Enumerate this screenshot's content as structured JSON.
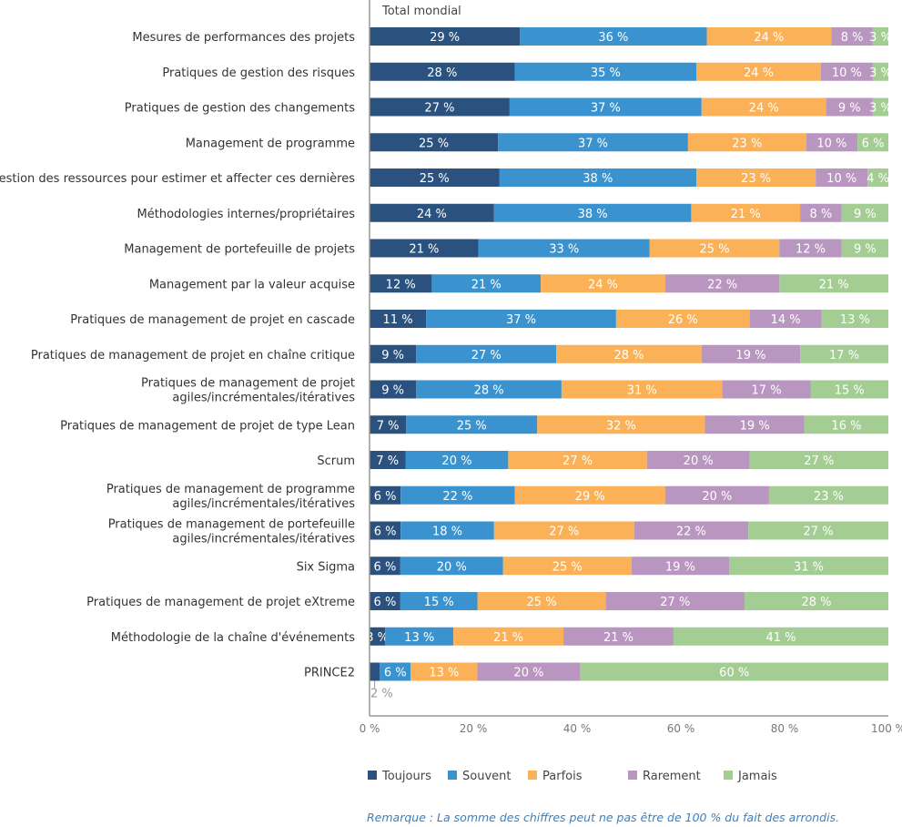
{
  "chart_data": {
    "type": "bar",
    "orientation": "horizontal",
    "stacked": true,
    "title": "Total mondial",
    "categories": [
      "Mesures de performances des projets",
      "Pratiques de gestion des risques",
      "Pratiques de gestion des changements",
      "Management de programme",
      "Gestion des ressources pour estimer et affecter ces dernières",
      "Méthodologies internes/propriétaires",
      "Management de portefeuille de projets",
      "Management par la valeur acquise",
      "Pratiques de management de projet en cascade",
      "Pratiques de management de projet en chaîne critique",
      "Pratiques de management de projet\nagiles/incrémentales/itératives",
      "Pratiques de management de projet de type Lean",
      "Scrum",
      "Pratiques de management de programme\nagiles/incrémentales/itératives",
      "Pratiques de management de portefeuille\nagiles/incrémentales/itératives",
      "Six Sigma",
      "Pratiques de management de projet eXtreme",
      "Méthodologie de la chaîne d'événements",
      "PRINCE2"
    ],
    "series": [
      {
        "name": "Toujours",
        "color": "#2b527f",
        "values": [
          29,
          28,
          27,
          25,
          25,
          24,
          21,
          12,
          11,
          9,
          9,
          7,
          7,
          6,
          6,
          6,
          6,
          3,
          2
        ]
      },
      {
        "name": "Souvent",
        "color": "#3a93cf",
        "values": [
          36,
          35,
          37,
          37,
          38,
          38,
          33,
          21,
          37,
          27,
          28,
          25,
          20,
          22,
          18,
          20,
          15,
          13,
          6
        ]
      },
      {
        "name": "Parfois",
        "color": "#fbb157",
        "values": [
          24,
          24,
          24,
          23,
          23,
          21,
          25,
          24,
          26,
          28,
          31,
          32,
          27,
          29,
          27,
          25,
          25,
          21,
          13
        ]
      },
      {
        "name": "Rarement",
        "color": "#b996c0",
        "values": [
          8,
          10,
          9,
          10,
          10,
          8,
          12,
          22,
          14,
          19,
          17,
          19,
          20,
          20,
          22,
          19,
          27,
          21,
          20
        ]
      },
      {
        "name": "Jamais",
        "color": "#a4cd93",
        "values": [
          3,
          3,
          3,
          6,
          4,
          9,
          9,
          21,
          13,
          17,
          15,
          16,
          27,
          23,
          27,
          31,
          28,
          41,
          60
        ]
      }
    ],
    "value_suffix": " %",
    "xlim": [
      0,
      100
    ],
    "x_ticks": [
      "0 %",
      "20 %",
      "40 %",
      "60 %",
      "80 %",
      "100 %"
    ],
    "grid": false,
    "legend_position": "bottom",
    "note": "Remarque : La somme des chiffres peut ne pas être de 100 % du fait des arrondis."
  }
}
